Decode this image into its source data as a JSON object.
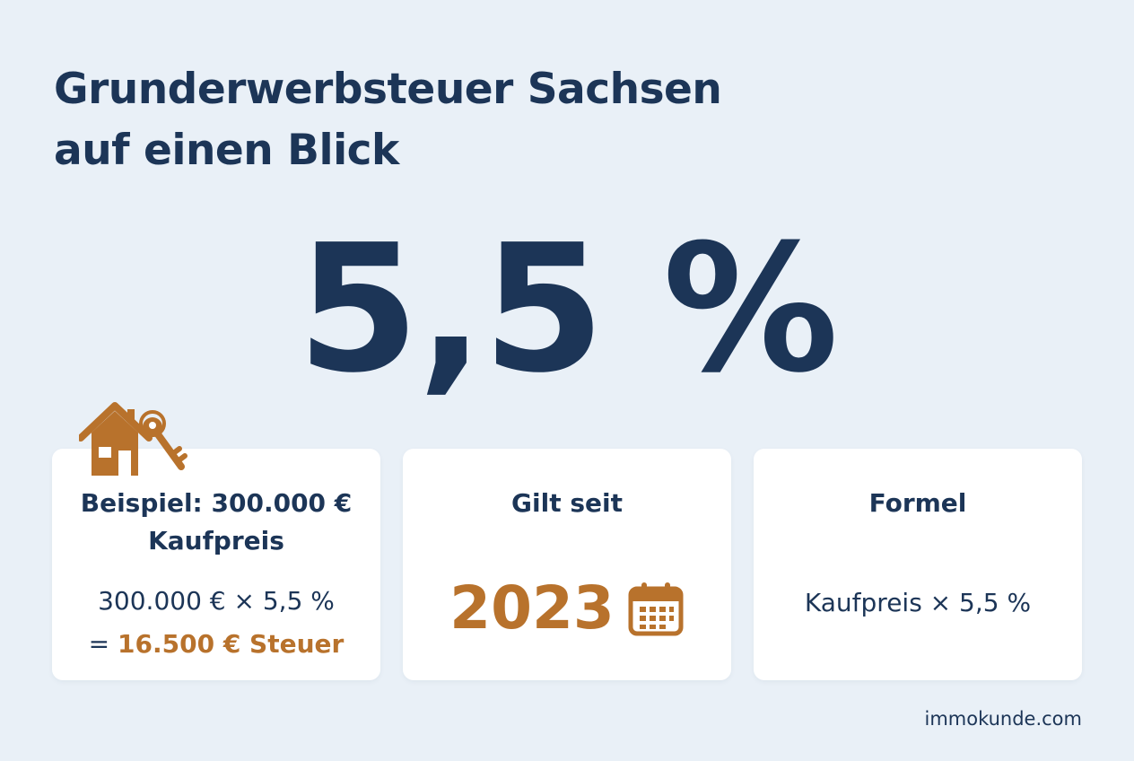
{
  "title": {
    "line1": "Grunderwerbsteuer Sachsen",
    "line2": "auf einen Blick"
  },
  "rate": "5,5 %",
  "cards": {
    "example": {
      "icon": "house-key-icon",
      "heading_line1": "Beispiel: 300.000 €",
      "heading_line2": "Kaufpreis",
      "calc_line1": "300.000 € × 5,5 %",
      "calc_prefix": "= ",
      "calc_result": "16.500 € Steuer"
    },
    "since": {
      "heading": "Gilt seit",
      "year": "2023",
      "icon": "calendar-icon"
    },
    "formula": {
      "heading": "Formel",
      "text": "Kaufpreis × 5,5 %"
    }
  },
  "footer": "immokunde.com",
  "colors": {
    "background": "#e9f0f7",
    "primary": "#1c3557",
    "accent": "#b8722c",
    "card": "#ffffff"
  }
}
